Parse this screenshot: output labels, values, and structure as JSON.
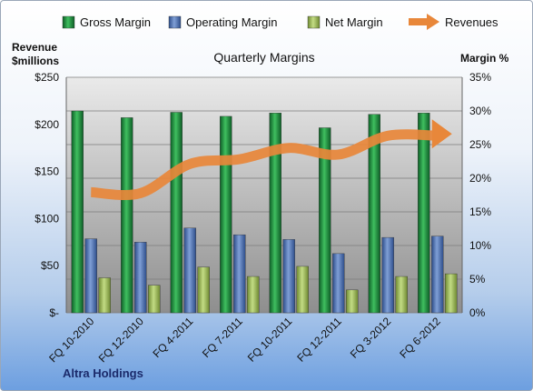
{
  "chart_data": {
    "type": "bar",
    "title": "Quarterly Margins",
    "categories": [
      "FQ 10-2010",
      "FQ 12-2010",
      "FQ 4-2011",
      "FQ 7-2011",
      "FQ 10-2011",
      "FQ 12-2011",
      "FQ 3-2012",
      "FQ 6-2012"
    ],
    "series": [
      {
        "name": "Gross Margin",
        "type": "bar",
        "axis": "right",
        "values": [
          30.0,
          29.0,
          29.8,
          29.2,
          29.7,
          27.5,
          29.5,
          29.7
        ],
        "color": "#1f8a3a"
      },
      {
        "name": "Operating Margin",
        "type": "bar",
        "axis": "right",
        "values": [
          11.0,
          10.5,
          12.6,
          11.6,
          10.9,
          8.8,
          11.2,
          11.4
        ],
        "color": "#4a6fb0"
      },
      {
        "name": "Net Margin",
        "type": "bar",
        "axis": "right",
        "values": [
          5.2,
          4.1,
          6.8,
          5.4,
          6.9,
          3.4,
          5.4,
          5.8
        ],
        "color": "#9ab85a"
      },
      {
        "name": "Revenues",
        "type": "line",
        "axis": "left",
        "values": [
          128,
          127,
          158,
          163,
          175,
          168,
          188,
          188
        ],
        "color": "#e8873a"
      }
    ],
    "ylabel_left": [
      "Revenue",
      "$millions"
    ],
    "ylabel_right": "Margin %",
    "ylim_left": [
      0,
      250
    ],
    "ylim_right": [
      0,
      35
    ],
    "yticks_left": [
      "$-",
      "$50",
      "$100",
      "$150",
      "$200",
      "$250"
    ],
    "yticks_right": [
      "0%",
      "5%",
      "10%",
      "15%",
      "20%",
      "25%",
      "30%",
      "35%"
    ],
    "legend": "top",
    "grid": true
  },
  "footer": {
    "company": "Altra Holdings"
  }
}
